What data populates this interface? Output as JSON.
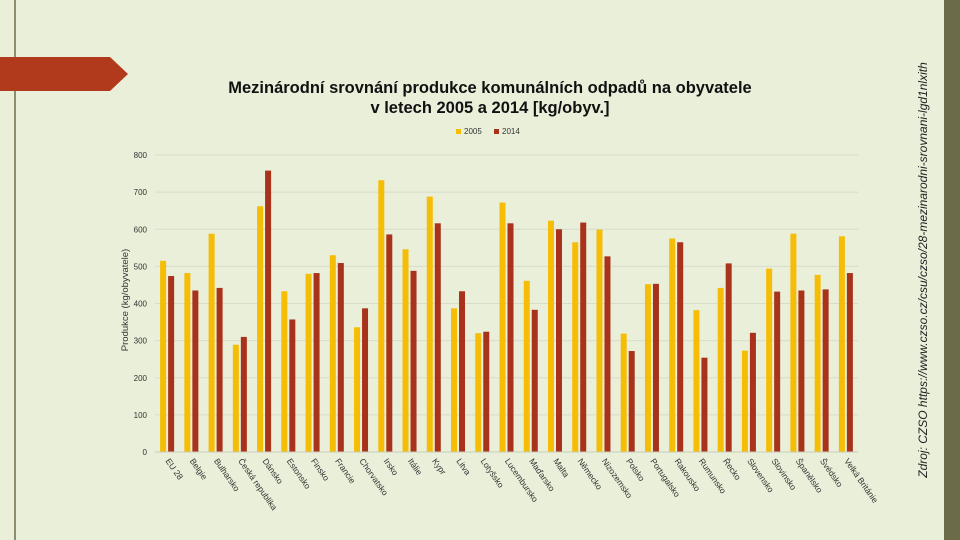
{
  "slide": {
    "title_line1": "Mezinárodní srovnání produkce komunálních odpadů na obyvatele",
    "title_line2": "v letech 2005 a 2014 [kg/obyv.]",
    "source": "Zdroj: CZSO https://www.czso.cz/csu/czso/28-mezinarodni-srovnani-lgd1nlxith",
    "colors": {
      "background_tint": "#e9efd9",
      "accent_red": "#b23a1c",
      "side_bar": "#6b6b4a",
      "series_2005": "#f5bd05",
      "series_2014": "#a8321a"
    }
  },
  "chart_data": {
    "type": "bar",
    "title": "",
    "ylabel": "Produkce (kg/obyvatele)",
    "xlabel": "",
    "ylim": [
      0,
      800
    ],
    "yticks": [
      0,
      100,
      200,
      300,
      400,
      500,
      600,
      700,
      800
    ],
    "grid": true,
    "legend_position": "top-center",
    "categories": [
      "EU 28",
      "Belgie",
      "Bulharsko",
      "Česká republika",
      "Dánsko",
      "Estonsko",
      "Finsko",
      "Francie",
      "Chorvatsko",
      "Irsko",
      "Itálie",
      "Kypr",
      "Litva",
      "Lotyšsko",
      "Lucembursko",
      "Maďarsko",
      "Malta",
      "Německo",
      "Nizozemsko",
      "Polsko",
      "Portugalsko",
      "Rakousko",
      "Rumunsko",
      "Řecko",
      "Slovensko",
      "Slovinsko",
      "Španělsko",
      "Švédsko",
      "Velká Británie"
    ],
    "series": [
      {
        "name": "2005",
        "color": "#f5bd05",
        "values": [
          515,
          482,
          588,
          289,
          662,
          433,
          480,
          530,
          336,
          732,
          546,
          688,
          387,
          320,
          672,
          461,
          623,
          565,
          599,
          319,
          452,
          575,
          382,
          442,
          273,
          494,
          588,
          477,
          581
        ]
      },
      {
        "name": "2014",
        "color": "#a8321a",
        "values": [
          474,
          435,
          442,
          310,
          758,
          357,
          482,
          509,
          387,
          586,
          488,
          616,
          433,
          324,
          616,
          383,
          600,
          618,
          527,
          272,
          453,
          565,
          254,
          508,
          321,
          432,
          435,
          438,
          482
        ]
      }
    ]
  }
}
